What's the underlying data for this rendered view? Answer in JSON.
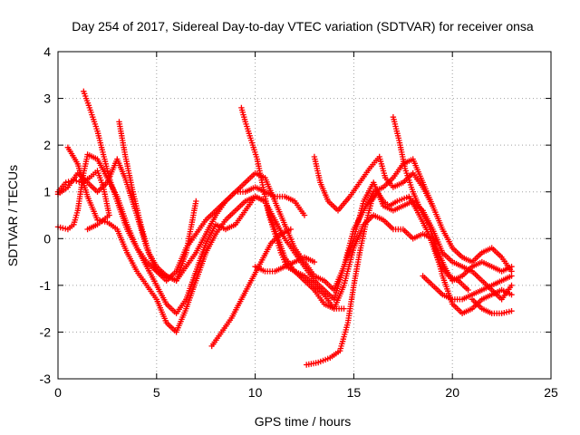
{
  "chart_data": {
    "type": "scatter",
    "title": "Day 254 of 2017, Sidereal Day-to-day VTEC variation (SDTVAR) for receiver onsa",
    "xlabel": "GPS time / hours",
    "ylabel": "SDTVAR / TECUs",
    "xlim": [
      0,
      25
    ],
    "ylim": [
      -3,
      4
    ],
    "x_ticks": [
      "0",
      "5",
      "10",
      "15",
      "20",
      "25"
    ],
    "y_ticks": [
      "-3",
      "-2",
      "-1",
      "0",
      "1",
      "2",
      "3",
      "4"
    ],
    "grid": true,
    "marker": "+",
    "color": "#ff0000",
    "series": [
      {
        "points": [
          [
            0.0,
            0.95
          ],
          [
            0.5,
            1.1
          ],
          [
            1.0,
            1.4
          ],
          [
            1.5,
            1.2
          ],
          [
            2.0,
            1.0
          ],
          [
            2.5,
            1.2
          ],
          [
            3.0,
            1.7
          ],
          [
            3.4,
            1.3
          ],
          [
            4.0,
            0.5
          ],
          [
            4.5,
            -0.2
          ],
          [
            5.0,
            -0.7
          ],
          [
            5.5,
            -0.9
          ],
          [
            6.0,
            -0.7
          ],
          [
            6.5,
            -0.2
          ],
          [
            7.0,
            0.1
          ],
          [
            7.5,
            0.4
          ],
          [
            8.0,
            0.6
          ],
          [
            8.5,
            0.8
          ],
          [
            9.0,
            1.0
          ],
          [
            9.5,
            1.2
          ],
          [
            10.0,
            1.4
          ],
          [
            10.5,
            1.3
          ],
          [
            11.0,
            0.8
          ],
          [
            11.5,
            0.3
          ],
          [
            12.0,
            -0.2
          ],
          [
            12.5,
            -0.5
          ],
          [
            13.0,
            -0.8
          ],
          [
            13.5,
            -0.9
          ],
          [
            14.0,
            -1.1
          ],
          [
            14.5,
            -0.6
          ],
          [
            15.0,
            0.0
          ],
          [
            15.5,
            0.8
          ],
          [
            16.0,
            1.2
          ],
          [
            16.5,
            0.7
          ],
          [
            17.0,
            0.6
          ],
          [
            17.5,
            0.7
          ],
          [
            18.0,
            0.8
          ],
          [
            18.5,
            0.6
          ],
          [
            19.0,
            0.2
          ],
          [
            19.5,
            -0.3
          ],
          [
            20.0,
            -0.5
          ],
          [
            20.5,
            -0.6
          ],
          [
            21.0,
            -0.7
          ],
          [
            21.5,
            -0.9
          ],
          [
            22.0,
            -1.1
          ],
          [
            22.5,
            -1.3
          ],
          [
            23.0,
            -1.0
          ]
        ]
      },
      {
        "points": [
          [
            0.0,
            0.25
          ],
          [
            0.5,
            0.2
          ],
          [
            0.8,
            0.3
          ],
          [
            1.0,
            0.6
          ],
          [
            1.3,
            1.4
          ],
          [
            1.5,
            1.8
          ],
          [
            2.0,
            1.7
          ],
          [
            2.5,
            1.3
          ],
          [
            3.0,
            0.9
          ],
          [
            3.5,
            0.3
          ],
          [
            4.0,
            -0.2
          ],
          [
            4.5,
            -0.6
          ],
          [
            5.0,
            -1.0
          ],
          [
            5.5,
            -1.4
          ],
          [
            6.0,
            -1.6
          ],
          [
            6.5,
            -1.3
          ],
          [
            7.0,
            -0.7
          ],
          [
            7.5,
            -0.1
          ],
          [
            8.0,
            0.3
          ],
          [
            8.5,
            0.2
          ],
          [
            9.0,
            0.3
          ],
          [
            9.5,
            0.6
          ],
          [
            10.0,
            0.9
          ],
          [
            10.5,
            0.8
          ],
          [
            11.0,
            0.4
          ],
          [
            11.5,
            0.0
          ],
          [
            12.0,
            -0.3
          ],
          [
            12.5,
            -0.6
          ],
          [
            13.0,
            -0.9
          ],
          [
            13.5,
            -1.1
          ],
          [
            14.0,
            -1.3
          ],
          [
            14.5,
            -0.6
          ],
          [
            15.0,
            0.2
          ],
          [
            15.5,
            0.6
          ],
          [
            16.0,
            1.0
          ],
          [
            16.5,
            1.1
          ],
          [
            17.0,
            1.3
          ],
          [
            17.5,
            1.6
          ],
          [
            18.0,
            1.7
          ],
          [
            18.5,
            1.2
          ],
          [
            19.0,
            0.7
          ],
          [
            19.5,
            0.2
          ],
          [
            20.0,
            -0.2
          ],
          [
            20.5,
            -0.4
          ],
          [
            21.0,
            -0.5
          ],
          [
            21.5,
            -0.3
          ],
          [
            22.0,
            -0.2
          ],
          [
            22.5,
            -0.4
          ],
          [
            23.0,
            -0.7
          ]
        ]
      },
      {
        "points": [
          [
            0.5,
            1.95
          ],
          [
            1.0,
            1.6
          ],
          [
            1.5,
            0.9
          ],
          [
            2.0,
            0.4
          ],
          [
            2.5,
            0.35
          ],
          [
            3.0,
            0.2
          ],
          [
            3.5,
            -0.3
          ],
          [
            4.0,
            -0.7
          ],
          [
            4.5,
            -1.0
          ],
          [
            5.0,
            -1.3
          ],
          [
            5.5,
            -1.8
          ],
          [
            6.0,
            -2.0
          ],
          [
            6.5,
            -1.5
          ],
          [
            7.0,
            -0.9
          ],
          [
            7.5,
            -0.3
          ],
          [
            8.0,
            0.1
          ],
          [
            8.5,
            0.4
          ],
          [
            9.0,
            0.6
          ],
          [
            9.5,
            0.8
          ],
          [
            10.0,
            0.9
          ],
          [
            10.5,
            0.8
          ],
          [
            11.0,
            0.2
          ],
          [
            11.5,
            -0.4
          ],
          [
            12.0,
            -0.7
          ],
          [
            12.5,
            -0.9
          ],
          [
            13.0,
            -1.1
          ],
          [
            13.5,
            -1.4
          ],
          [
            14.0,
            -1.5
          ],
          [
            14.5,
            -1.0
          ],
          [
            15.0,
            -0.2
          ],
          [
            15.5,
            0.3
          ],
          [
            16.0,
            0.5
          ],
          [
            16.5,
            0.4
          ],
          [
            17.0,
            0.2
          ],
          [
            17.5,
            0.2
          ],
          [
            18.0,
            0.0
          ],
          [
            18.5,
            0.1
          ],
          [
            19.0,
            0.0
          ],
          [
            19.5,
            -0.8
          ],
          [
            20.0,
            -1.4
          ],
          [
            20.5,
            -1.6
          ],
          [
            21.0,
            -1.5
          ],
          [
            21.5,
            -1.3
          ],
          [
            22.0,
            -1.2
          ],
          [
            22.5,
            -1.1
          ],
          [
            23.0,
            -1.2
          ]
        ]
      },
      {
        "points": [
          [
            1.3,
            3.15
          ],
          [
            1.6,
            2.8
          ],
          [
            2.0,
            2.3
          ],
          [
            2.3,
            1.8
          ],
          [
            2.6,
            1.3
          ],
          [
            3.0,
            0.8
          ],
          [
            3.5,
            0.2
          ],
          [
            4.0,
            -0.2
          ],
          [
            4.5,
            -0.5
          ],
          [
            5.0,
            -0.7
          ],
          [
            5.5,
            -0.8
          ],
          [
            6.0,
            -0.9
          ],
          [
            6.5,
            -0.6
          ],
          [
            7.0,
            -0.3
          ],
          [
            7.5,
            0.1
          ],
          [
            8.0,
            0.5
          ],
          [
            8.5,
            0.8
          ],
          [
            9.0,
            1.0
          ],
          [
            9.5,
            1.0
          ],
          [
            10.0,
            1.1
          ],
          [
            10.5,
            1.0
          ],
          [
            11.0,
            0.9
          ],
          [
            11.5,
            0.9
          ],
          [
            12.0,
            0.8
          ],
          [
            12.5,
            0.5
          ]
        ]
      },
      {
        "points": [
          [
            3.1,
            2.5
          ],
          [
            3.4,
            1.8
          ],
          [
            3.8,
            1.0
          ],
          [
            4.2,
            0.3
          ],
          [
            4.6,
            -0.3
          ],
          [
            5.0,
            -0.6
          ],
          [
            5.5,
            -0.8
          ],
          [
            6.0,
            -0.9
          ],
          [
            6.5,
            -0.3
          ],
          [
            7.0,
            0.8
          ]
        ]
      },
      {
        "points": [
          [
            7.8,
            -2.3
          ],
          [
            8.3,
            -2.0
          ],
          [
            8.8,
            -1.7
          ],
          [
            9.3,
            -1.3
          ],
          [
            9.8,
            -0.9
          ],
          [
            10.3,
            -0.5
          ],
          [
            10.8,
            -0.1
          ],
          [
            11.3,
            0.1
          ],
          [
            11.8,
            0.2
          ]
        ]
      },
      {
        "points": [
          [
            9.3,
            2.8
          ],
          [
            9.5,
            2.5
          ],
          [
            9.8,
            2.1
          ],
          [
            10.1,
            1.7
          ],
          [
            10.4,
            1.1
          ],
          [
            10.7,
            0.5
          ],
          [
            11.0,
            0.1
          ],
          [
            11.3,
            -0.3
          ],
          [
            11.6,
            -0.6
          ],
          [
            12.0,
            -0.7
          ],
          [
            12.5,
            -0.8
          ],
          [
            13.0,
            -1.0
          ],
          [
            13.5,
            -1.2
          ],
          [
            14.0,
            -1.5
          ],
          [
            14.5,
            -1.5
          ]
        ]
      },
      {
        "points": [
          [
            10.0,
            -0.6
          ],
          [
            10.5,
            -0.7
          ],
          [
            11.0,
            -0.7
          ],
          [
            11.5,
            -0.6
          ],
          [
            12.0,
            -0.5
          ],
          [
            12.5,
            -0.4
          ],
          [
            13.0,
            -0.5
          ]
        ]
      },
      {
        "points": [
          [
            13.0,
            1.75
          ],
          [
            13.3,
            1.2
          ],
          [
            13.7,
            0.8
          ],
          [
            14.2,
            0.6
          ],
          [
            14.8,
            0.9
          ],
          [
            15.3,
            1.2
          ],
          [
            15.8,
            1.5
          ],
          [
            16.3,
            1.75
          ],
          [
            16.6,
            1.3
          ],
          [
            17.0,
            1.1
          ],
          [
            17.5,
            1.2
          ],
          [
            18.0,
            1.4
          ],
          [
            18.5,
            1.1
          ],
          [
            19.0,
            0.7
          ]
        ]
      },
      {
        "points": [
          [
            12.6,
            -2.7
          ],
          [
            13.2,
            -2.65
          ],
          [
            13.8,
            -2.55
          ],
          [
            14.3,
            -2.4
          ],
          [
            14.7,
            -1.8
          ],
          [
            15.0,
            -1.0
          ],
          [
            15.3,
            -0.3
          ],
          [
            15.6,
            0.3
          ],
          [
            15.9,
            0.8
          ],
          [
            16.2,
            1.0
          ],
          [
            16.5,
            0.8
          ],
          [
            16.8,
            0.7
          ],
          [
            17.2,
            0.8
          ],
          [
            17.8,
            0.9
          ],
          [
            18.2,
            0.6
          ],
          [
            18.8,
            0.1
          ],
          [
            19.3,
            -0.5
          ],
          [
            19.8,
            -0.8
          ],
          [
            20.3,
            -0.9
          ],
          [
            20.8,
            -1.1
          ]
        ]
      },
      {
        "points": [
          [
            17.0,
            2.6
          ],
          [
            17.3,
            2.1
          ],
          [
            17.6,
            1.5
          ],
          [
            18.0,
            1.0
          ],
          [
            18.4,
            0.6
          ],
          [
            18.8,
            0.3
          ],
          [
            19.2,
            -0.2
          ],
          [
            19.6,
            -0.6
          ],
          [
            20.0,
            -0.9
          ],
          [
            20.5,
            -0.8
          ],
          [
            21.0,
            -0.6
          ],
          [
            21.5,
            -0.5
          ],
          [
            22.0,
            -0.6
          ],
          [
            22.5,
            -0.7
          ],
          [
            23.0,
            -0.6
          ]
        ]
      },
      {
        "points": [
          [
            18.5,
            -0.8
          ],
          [
            19.0,
            -1.0
          ],
          [
            19.5,
            -1.2
          ],
          [
            20.0,
            -1.3
          ],
          [
            20.5,
            -1.3
          ],
          [
            21.0,
            -1.2
          ],
          [
            21.5,
            -1.1
          ],
          [
            22.0,
            -1.0
          ],
          [
            22.5,
            -0.9
          ],
          [
            23.0,
            -0.8
          ]
        ]
      },
      {
        "points": [
          [
            21.0,
            -1.3
          ],
          [
            21.5,
            -1.5
          ],
          [
            22.0,
            -1.6
          ],
          [
            22.5,
            -1.6
          ],
          [
            23.0,
            -1.55
          ]
        ]
      },
      {
        "points": [
          [
            0.0,
            1.0
          ],
          [
            0.4,
            1.2
          ],
          [
            0.8,
            1.25
          ],
          [
            1.2,
            1.2
          ],
          [
            1.6,
            1.3
          ],
          [
            2.0,
            1.45
          ],
          [
            2.3,
            1.1
          ],
          [
            2.6,
            0.5
          ],
          [
            2.0,
            0.3
          ],
          [
            1.5,
            0.2
          ]
        ]
      }
    ]
  }
}
